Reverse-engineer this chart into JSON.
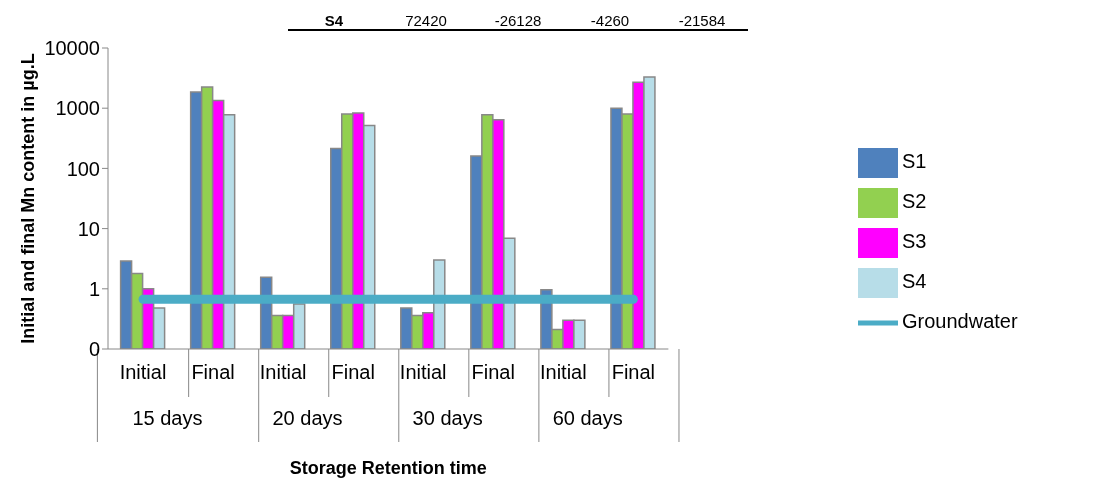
{
  "chart_data": {
    "type": "bar",
    "xlabel": "Storage Retention time",
    "ylabel": "Initial and final Mn  content in µg.L",
    "categories": [
      "Initial",
      "Final",
      "Initial",
      "Final",
      "Initial",
      "Final",
      "Initial",
      "Final"
    ],
    "series": [
      {
        "name": "S1",
        "color": "#4f81bd",
        "values": [
          2.9,
          1860,
          1.55,
          215,
          0.48,
          160,
          0.96,
          1000
        ]
      },
      {
        "name": "S2",
        "color": "#92d050",
        "values": [
          1.8,
          2240,
          0.36,
          800,
          0.36,
          780,
          0.21,
          800
        ]
      },
      {
        "name": "S3",
        "color": "#ff00ff",
        "values": [
          1.0,
          1340,
          0.36,
          830,
          0.4,
          645,
          0.3,
          2700
        ]
      },
      {
        "name": "S4",
        "color": "#b7dde8",
        "values": [
          0.48,
          780,
          0.56,
          515,
          3.0,
          6.9,
          0.3,
          3300
        ]
      },
      {
        "name": "Groundwater",
        "type": "line",
        "color": "#4bacc6",
        "values": [
          0.67,
          0.67,
          0.67,
          0.67,
          0.67,
          0.67,
          0.67,
          0.67
        ]
      }
    ],
    "log": "y",
    "ylim": [
      0.1,
      10000
    ],
    "yticks": [
      {
        "value": 0.1,
        "label": "0"
      },
      1,
      10,
      100,
      1000,
      10000
    ],
    "grid": false,
    "legend": "right",
    "marker": "none",
    "annotations": [
      "15 days",
      "20 days",
      "30 days",
      "60 days",
      "S4",
      "72420",
      "-26128",
      "-4260",
      "-21584"
    ]
  }
}
